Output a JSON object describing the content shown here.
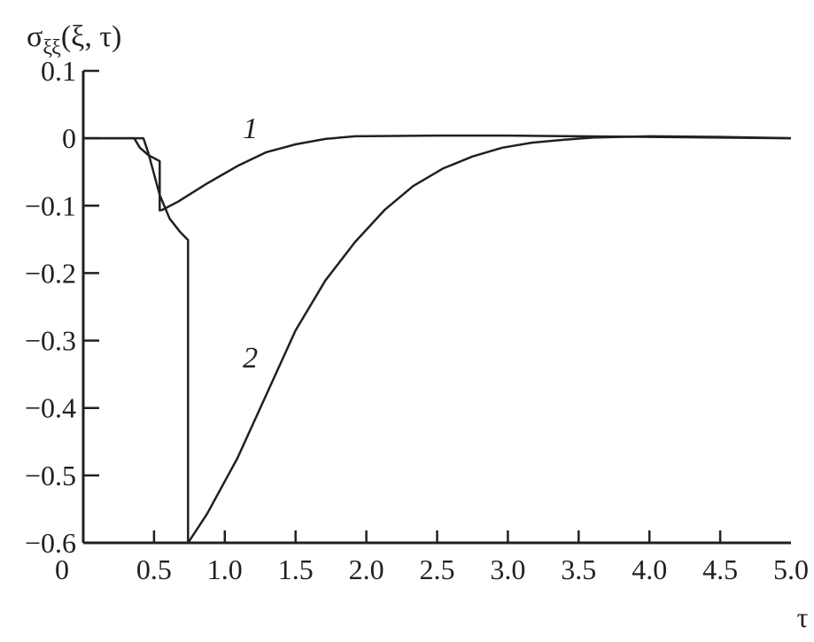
{
  "chart_data": {
    "type": "line",
    "title": "",
    "ylabel": "σξξ(ξ, τ)",
    "ylabel_parts": {
      "main": "σ",
      "sub": "ξξ",
      "args": "(ξ, τ)"
    },
    "xlabel": "τ",
    "xlim": [
      0,
      5.0
    ],
    "ylim": [
      -0.6,
      0.1
    ],
    "x_ticks": [
      0.5,
      1.0,
      1.5,
      2.0,
      2.5,
      3.0,
      3.5,
      4.0,
      4.5,
      5.0
    ],
    "x_tick_labels": [
      "0.5",
      "1.0",
      "1.5",
      "2.0",
      "2.5",
      "3.0",
      "3.5",
      "4.0",
      "4.5",
      "5.0"
    ],
    "x_origin_label": "0",
    "y_ticks": [
      0.1,
      0,
      -0.1,
      -0.2,
      -0.3,
      -0.4,
      -0.5,
      -0.6
    ],
    "y_tick_labels": [
      "0.1",
      "0",
      "−0.1",
      "−0.2",
      "−0.3",
      "−0.4",
      "−0.5",
      "−0.6"
    ],
    "grid": false,
    "line_color": "#231f20",
    "series": [
      {
        "name": "1",
        "label_at": [
          1.18,
          0.0
        ],
        "x": [
          0,
          0.36,
          0.4,
          0.46,
          0.54,
          0.54,
          0.56,
          0.67,
          0.875,
          1.09,
          1.29,
          1.5,
          1.71,
          1.92,
          2.5,
          3.0,
          3.5,
          4.0,
          4.5,
          5.0
        ],
        "y": [
          0,
          0,
          -0.014,
          -0.025,
          -0.034,
          -0.107,
          -0.106,
          -0.094,
          -0.067,
          -0.041,
          -0.021,
          -0.009,
          -0.001,
          0.003,
          0.004,
          0.004,
          0.003,
          0.002,
          0.001,
          0.0
        ]
      },
      {
        "name": "2",
        "label_at": [
          1.18,
          -0.34
        ],
        "x": [
          0,
          0.425,
          0.46,
          0.54,
          0.61,
          0.68,
          0.74,
          0.74,
          0.875,
          1.09,
          1.29,
          1.5,
          1.71,
          1.92,
          2.13,
          2.33,
          2.54,
          2.75,
          2.96,
          3.17,
          3.4,
          3.6,
          4.0,
          4.5,
          5.0
        ],
        "y": [
          0,
          0,
          -0.022,
          -0.084,
          -0.119,
          -0.138,
          -0.151,
          -0.6,
          -0.557,
          -0.474,
          -0.382,
          -0.285,
          -0.211,
          -0.154,
          -0.106,
          -0.071,
          -0.045,
          -0.027,
          -0.014,
          -0.0065,
          -0.002,
          0.001,
          0.003,
          0.002,
          0.0
        ]
      }
    ]
  }
}
